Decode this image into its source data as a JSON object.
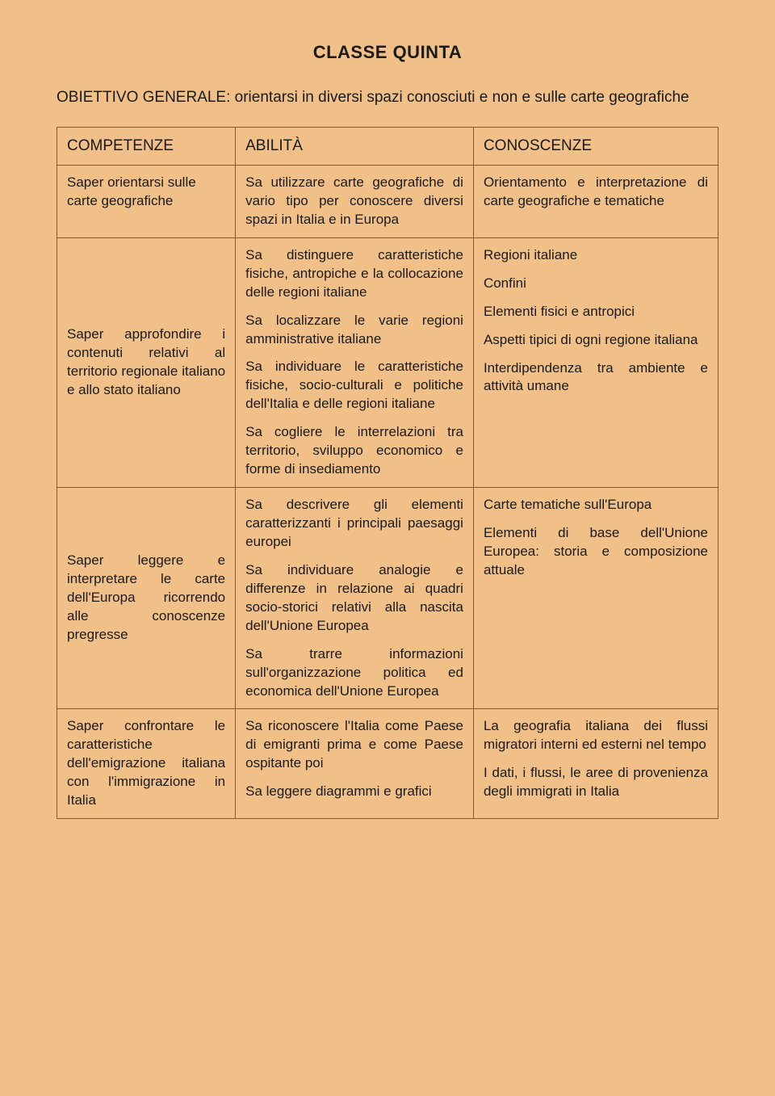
{
  "title": "CLASSE QUINTA",
  "subtitle": "OBIETTIVO GENERALE: orientarsi in diversi spazi conosciuti e non e sulle carte geografiche",
  "headers": {
    "c1": "COMPETENZE",
    "c2": "ABILITÀ",
    "c3": "CONOSCENZE"
  },
  "rows": [
    {
      "competenze": [
        "Saper orientarsi sulle carte geografiche"
      ],
      "abilita": [
        "Sa utilizzare carte geografiche di vario tipo per conoscere diversi spazi in Italia e in Europa"
      ],
      "conoscenze": [
        "Orientamento e interpretazione di carte geografiche e tematiche"
      ]
    },
    {
      "competenze": [
        "Saper approfondire i contenuti relativi al territorio regionale italiano e allo stato italiano"
      ],
      "abilita": [
        "Sa distinguere caratteristiche fisiche, antropiche e la collocazione delle regioni italiane",
        "Sa localizzare le varie regioni amministrative italiane",
        "Sa individuare le caratteristiche fisiche, socio-culturali e politiche dell'Italia e delle regioni italiane",
        "Sa cogliere le interrelazioni tra territorio, sviluppo economico e forme di insediamento"
      ],
      "conoscenze": [
        "Regioni italiane",
        "Confini",
        "Elementi fisici e antropici",
        "Aspetti tipici di ogni regione italiana",
        "Interdipendenza tra ambiente e attività umane"
      ]
    },
    {
      "competenze": [
        "Saper leggere e interpretare le carte dell'Europa ricorrendo alle conoscenze pregresse"
      ],
      "abilita": [
        "Sa descrivere gli elementi caratterizzanti i principali paesaggi europei",
        "Sa individuare analogie e differenze in relazione ai quadri socio-storici relativi alla nascita dell'Unione Europea",
        "Sa trarre informazioni sull'organizzazione politica ed economica dell'Unione Europea"
      ],
      "conoscenze": [
        "Carte tematiche sull'Europa",
        "Elementi di base dell'Unione Europea: storia e composizione attuale"
      ]
    },
    {
      "competenze": [
        "Saper confrontare le caratteristiche dell'emigrazione italiana con l'immigrazione in Italia"
      ],
      "abilita": [
        "Sa riconoscere l'Italia come Paese di emigranti prima e come Paese ospitante poi",
        "Sa leggere diagrammi e grafici"
      ],
      "conoscenze": [
        "La geografia italiana dei flussi migratori interni ed esterni nel tempo",
        "I dati, i flussi, le aree di provenienza degli immigrati in Italia"
      ]
    }
  ]
}
